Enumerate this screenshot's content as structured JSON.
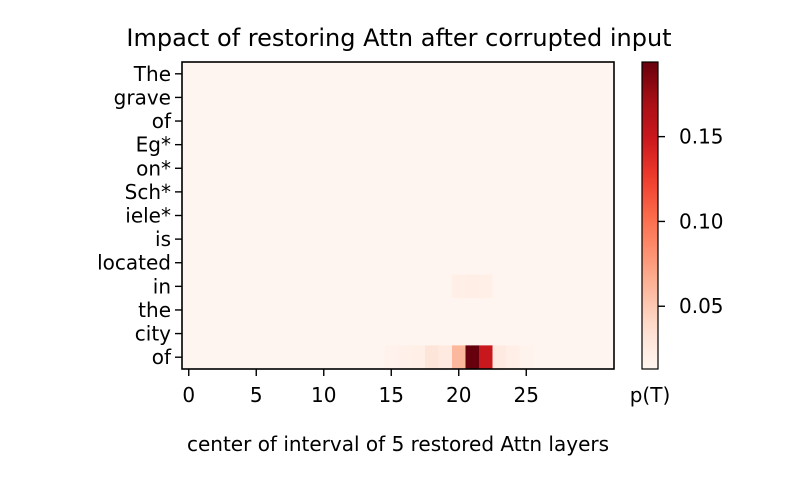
{
  "chart_data": {
    "type": "heatmap",
    "title": "Impact of restoring Attn after corrupted input",
    "xlabel": "center of interval of 5 restored Attn layers",
    "ylabel": "",
    "rows": [
      "The",
      "grave",
      "of",
      "Eg*",
      "on*",
      "Sch*",
      "iele*",
      "is",
      "located",
      "in",
      "the",
      "city",
      "of"
    ],
    "n_columns": 32,
    "x_ticks": [
      0,
      5,
      10,
      15,
      20,
      25
    ],
    "colorbar": {
      "label": "p(T)",
      "min": 0.013,
      "max": 0.194,
      "ticks": [
        0.05,
        0.1,
        0.15
      ],
      "tick_labels": [
        "0.05",
        "0.10",
        "0.15"
      ],
      "colormap": "Reds"
    },
    "baseline_value": 0.013,
    "highlighted_cells": [
      {
        "row": "in",
        "col": 20,
        "value": 0.02
      },
      {
        "row": "in",
        "col": 21,
        "value": 0.021
      },
      {
        "row": "in",
        "col": 22,
        "value": 0.02
      },
      {
        "row": "of",
        "col": 15,
        "value": 0.016
      },
      {
        "row": "of",
        "col": 16,
        "value": 0.018
      },
      {
        "row": "of",
        "col": 17,
        "value": 0.02
      },
      {
        "row": "of",
        "col": 18,
        "value": 0.03
      },
      {
        "row": "of",
        "col": 19,
        "value": 0.025
      },
      {
        "row": "of",
        "col": 20,
        "value": 0.06
      },
      {
        "row": "of",
        "col": 21,
        "value": 0.194
      },
      {
        "row": "of",
        "col": 22,
        "value": 0.15
      },
      {
        "row": "of",
        "col": 23,
        "value": 0.025
      },
      {
        "row": "of",
        "col": 24,
        "value": 0.02
      },
      {
        "row": "of",
        "col": 25,
        "value": 0.015
      }
    ]
  }
}
